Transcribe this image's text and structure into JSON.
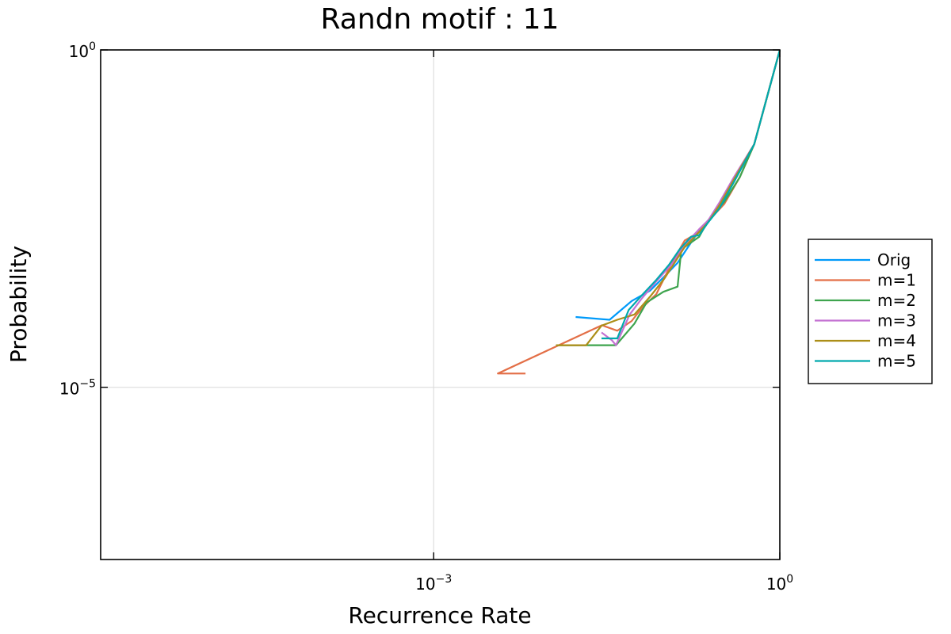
{
  "chart_data": {
    "type": "line",
    "title": "Randn motif : 11",
    "xlabel": "Recurrence Rate",
    "ylabel": "Probability",
    "xscale": "log",
    "yscale": "log",
    "xlim": [
      1.3e-06,
      1.0
    ],
    "ylim": [
      2.8e-08,
      1.0
    ],
    "xticks": [
      {
        "base": "10",
        "exp": "−3",
        "value": 0.001
      },
      {
        "base": "10",
        "exp": "0",
        "value": 1.0
      }
    ],
    "yticks": [
      {
        "base": "10",
        "exp": "−5",
        "value": 1e-05
      },
      {
        "base": "10",
        "exp": "0",
        "value": 1.0
      }
    ],
    "grid": true,
    "legend_position": "outside-right",
    "series": [
      {
        "name": "Orig",
        "color": "#009AFA",
        "x": [
          0.017,
          0.0335,
          0.052,
          0.075,
          0.1,
          0.13,
          0.17,
          0.2,
          0.24,
          0.3,
          0.35,
          0.45,
          0.6,
          1.0
        ],
        "y": [
          0.00011,
          0.0001,
          0.00019,
          0.00027,
          0.00044,
          0.0007,
          0.0014,
          0.0021,
          0.003,
          0.0048,
          0.008,
          0.016,
          0.04,
          1.0
        ]
      },
      {
        "name": "m=1",
        "color": "#E36F47",
        "x": [
          0.00625,
          0.0036,
          0.0287,
          0.039,
          0.052,
          0.064,
          0.085,
          0.115,
          0.15,
          0.2,
          0.24,
          0.33,
          0.45,
          0.6,
          1.0
        ],
        "y": [
          1.6e-05,
          1.6e-05,
          8.3e-05,
          6.9e-05,
          9.6e-05,
          0.00015,
          0.00024,
          0.00068,
          0.0015,
          0.002,
          0.0029,
          0.0052,
          0.013,
          0.04,
          1.0
        ]
      },
      {
        "name": "m=2",
        "color": "#3EA44E",
        "x": [
          0.0115,
          0.038,
          0.055,
          0.07,
          0.098,
          0.13,
          0.14,
          0.17,
          0.2,
          0.24,
          0.33,
          0.45,
          0.6,
          1.0
        ],
        "y": [
          4.2e-05,
          4.2e-05,
          8.8e-05,
          0.00018,
          0.00026,
          0.00031,
          0.0011,
          0.0014,
          0.0017,
          0.003,
          0.0056,
          0.013,
          0.04,
          1.0
        ]
      },
      {
        "name": "m=3",
        "color": "#C371D2",
        "x": [
          0.0285,
          0.035,
          0.038,
          0.05,
          0.064,
          0.085,
          0.12,
          0.15,
          0.2,
          0.24,
          0.3,
          0.4,
          0.6,
          1.0
        ],
        "y": [
          6.5e-05,
          5e-05,
          4.2e-05,
          0.00012,
          0.00021,
          0.00037,
          0.00072,
          0.0013,
          0.0022,
          0.003,
          0.0055,
          0.013,
          0.04,
          1.0
        ]
      },
      {
        "name": "m=4",
        "color": "#AC8E18",
        "x": [
          0.0115,
          0.021,
          0.0285,
          0.039,
          0.055,
          0.075,
          0.1,
          0.15,
          0.2,
          0.24,
          0.3,
          0.4,
          0.6,
          1.0
        ],
        "y": [
          4.2e-05,
          4.2e-05,
          8.2e-05,
          0.0001,
          0.00012,
          0.00022,
          0.00041,
          0.0012,
          0.002,
          0.0028,
          0.005,
          0.012,
          0.04,
          1.0
        ]
      },
      {
        "name": "m=5",
        "color": "#00A9AD",
        "x": [
          0.0285,
          0.039,
          0.049,
          0.065,
          0.085,
          0.11,
          0.135,
          0.17,
          0.2,
          0.24,
          0.3,
          0.4,
          0.6,
          1.0
        ],
        "y": [
          5.3e-05,
          5.3e-05,
          0.00014,
          0.00024,
          0.00039,
          0.00066,
          0.0011,
          0.0017,
          0.0018,
          0.0028,
          0.0045,
          0.011,
          0.04,
          1.0
        ]
      }
    ]
  }
}
